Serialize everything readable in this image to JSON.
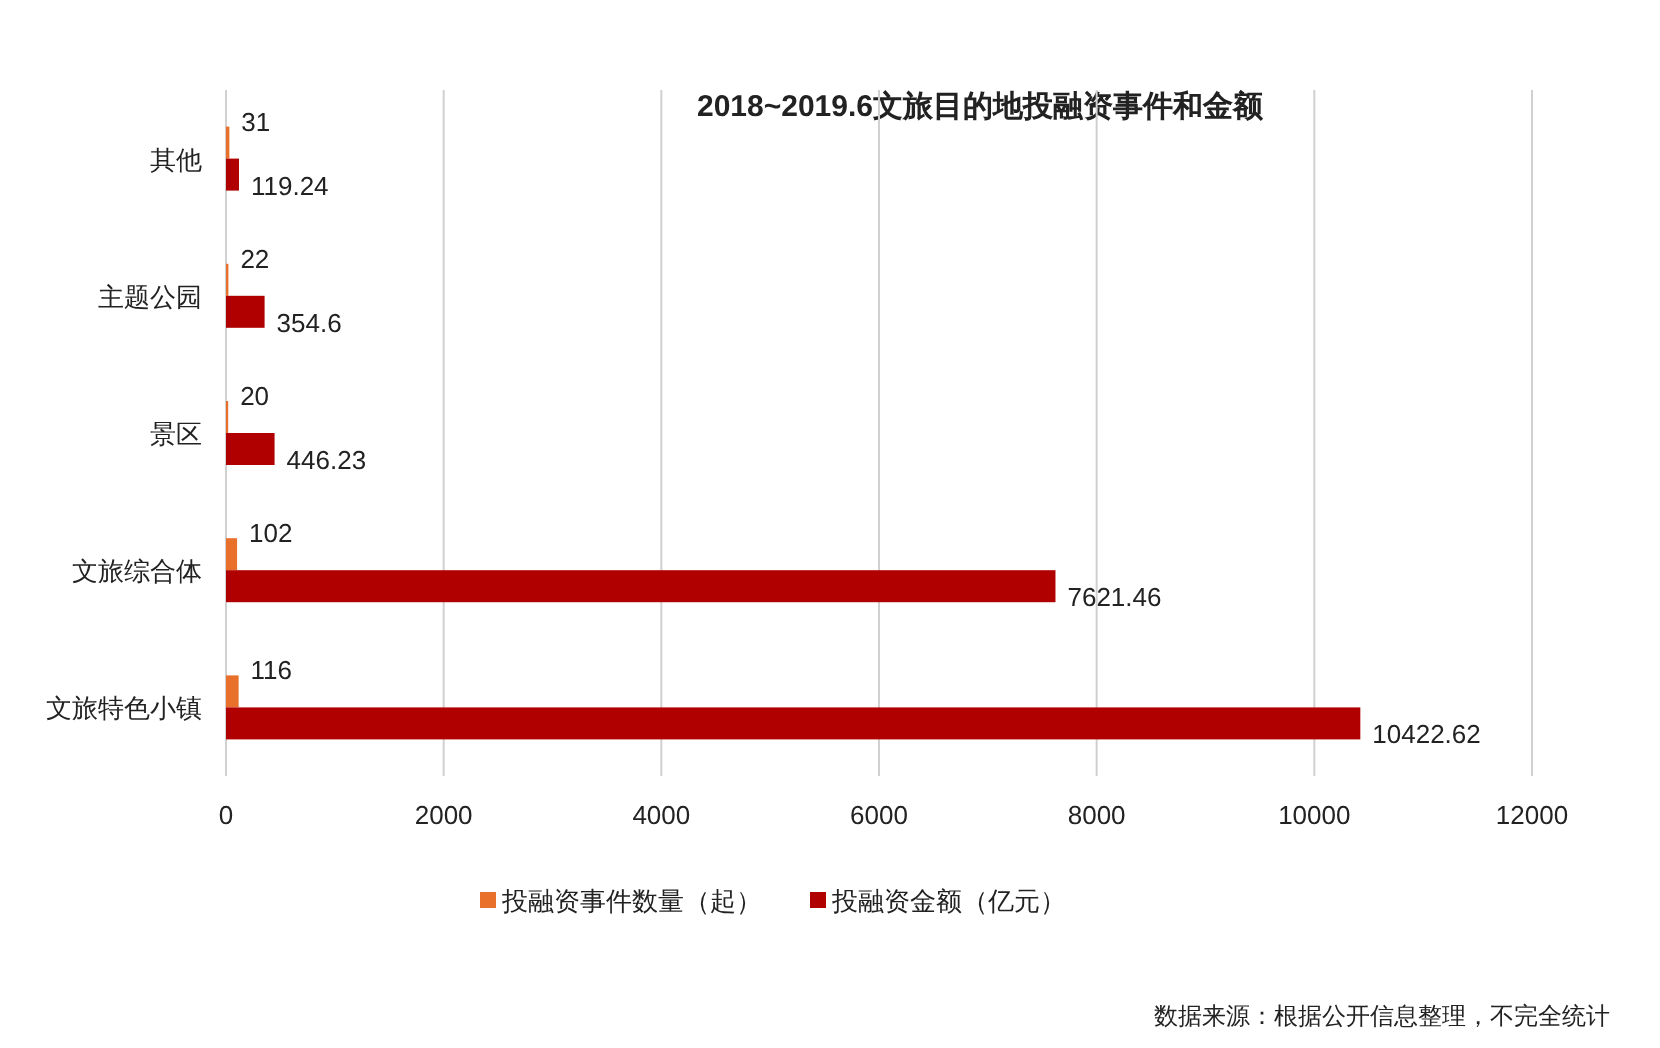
{
  "chart_data": {
    "type": "bar",
    "orientation": "horizontal",
    "title": "2018~2019.6文旅目的地投融资事件和金额",
    "categories": [
      "其他",
      "主题公园",
      "景区",
      "文旅综合体",
      "文旅特色小镇"
    ],
    "series": [
      {
        "name": "投融资事件数量（起）",
        "color": "#e8702a",
        "values": [
          31,
          22,
          20,
          102,
          116
        ]
      },
      {
        "name": "投融资金额（亿元）",
        "color": "#b00000",
        "values": [
          119.24,
          354.6,
          446.23,
          7621.46,
          10422.62
        ]
      }
    ],
    "xlim": [
      0,
      12000
    ],
    "xticks": [
      0,
      2000,
      4000,
      6000,
      8000,
      10000,
      12000
    ],
    "grid": "x",
    "legend": "bottom",
    "data_labels": true,
    "annotations": [
      "数据来源：根据公开信息整理，不完全统计"
    ]
  }
}
